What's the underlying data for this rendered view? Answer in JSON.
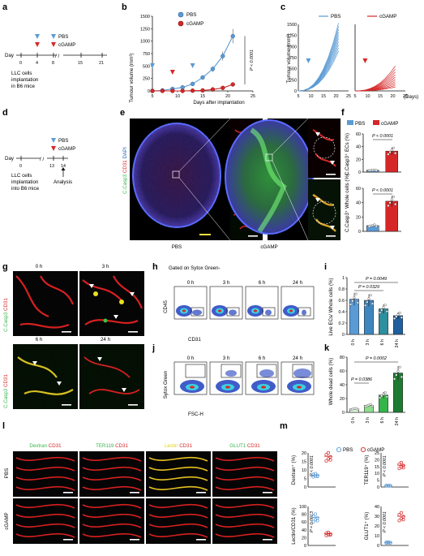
{
  "colors": {
    "pbs": "#5b9bd5",
    "cgamp": "#d62728",
    "green": "#35b44a",
    "dark_green": "#1e7a32",
    "teal": "#2e8f9e",
    "blue_flow": "#1f3fbf"
  },
  "panel_letters": [
    "a",
    "b",
    "c",
    "d",
    "e",
    "f",
    "g",
    "h",
    "i",
    "j",
    "k",
    "l",
    "m"
  ],
  "panel_a": {
    "day_label": "Day",
    "ticks": [
      "0",
      "4",
      "8",
      "15",
      "21"
    ],
    "legend": [
      "PBS",
      "cGAMP"
    ],
    "note": [
      "LLC cells",
      "implantation",
      "in B6 mice"
    ]
  },
  "panel_b": {
    "ylabel": "Tumour volume (mm³)",
    "xlabel": "Days after implantation",
    "pval": "P < 0.0001",
    "legend": [
      "PBS",
      "cGAMP"
    ]
  },
  "panel_c": {
    "ylabel": "Tumour volume (mm³)",
    "xlabel": "(Days)",
    "legend": [
      "PBS",
      "cGAMP"
    ]
  },
  "panel_d": {
    "day_label": "Day",
    "ticks": [
      "0",
      "13",
      "14"
    ],
    "legend": [
      "PBS",
      "cGAMP"
    ],
    "note": [
      "LLC cells",
      "implantation",
      "into B6 mice"
    ],
    "analysis": "Analysis"
  },
  "panel_e": {
    "stain": [
      "C.Casp3",
      "CD31",
      "DAPI"
    ],
    "groups": [
      "PBS",
      "cGAMP"
    ]
  },
  "panel_f": {
    "legend": [
      "PBS",
      "cGAMP"
    ],
    "ylabel_top": "C.Casp3⁺ ECs (%)",
    "ylabel_bottom": "C.Casp3⁺ Whole cells (%)",
    "pval_top": "P < 0.0001",
    "pval_bottom": "P < 0.0001"
  },
  "panel_g": {
    "stain": [
      "C.Casp3",
      "CD31"
    ],
    "times": [
      "0 h",
      "3 h",
      "6 h",
      "24 h"
    ]
  },
  "panel_h": {
    "title": "Gated on Sytox Green-",
    "times": [
      "0 h",
      "3 h",
      "6 h",
      "24 h"
    ],
    "ylabel": "CD45",
    "xlabel": "CD31"
  },
  "panel_i": {
    "ylabel": "Live ECs/ Whole cells (%)",
    "pvals": [
      "P = 0.0049",
      "P = 0.0329"
    ],
    "times": [
      "0 h",
      "3 h",
      "6 h",
      "24 h"
    ]
  },
  "panel_j": {
    "times": [
      "0 h",
      "3 h",
      "6 h",
      "24 h"
    ],
    "ylabel": "Sytox Green",
    "xlabel": "FSC-H"
  },
  "panel_k": {
    "ylabel": "Whole dead cells (%)",
    "pvals": [
      "P = 0.0002",
      "P = 0.0386"
    ],
    "times": [
      "0 h",
      "3 h",
      "6 h",
      "24 h"
    ]
  },
  "panel_l": {
    "cols": [
      [
        "Dextran",
        "CD31"
      ],
      [
        "TER119",
        "CD31"
      ],
      [
        "Lectin",
        "CD31"
      ],
      [
        "GLUT1",
        "CD31"
      ]
    ],
    "rows": [
      "PBS",
      "cGAMP"
    ]
  },
  "panel_m": {
    "legend": [
      "PBS",
      "cGAMP"
    ],
    "ylabels": [
      "Dextran⁺ (%)",
      "TER119⁺ (%)",
      "Lectin/CD31 (%)",
      "GLUT1⁺ (%)"
    ],
    "pvals": [
      "P < 0.0001",
      "P < 0.0001",
      "P = 0.0013",
      "P < 0.0001"
    ]
  },
  "chart_data": [
    {
      "type": "line",
      "title": "",
      "xlabel": "Days after implantation",
      "ylabel": "Tumour volume (mm³)",
      "x": [
        5,
        7,
        9,
        11,
        13,
        15,
        17,
        19,
        21
      ],
      "xlim": [
        5,
        25
      ],
      "ylim": [
        0,
        1500
      ],
      "yticks": [
        0,
        250,
        500,
        750,
        1000,
        1250,
        1500
      ],
      "xticks": [
        5,
        10,
        15,
        20,
        25
      ],
      "series": [
        {
          "name": "PBS",
          "values": [
            0,
            10,
            40,
            70,
            140,
            270,
            440,
            700,
            1100
          ]
        },
        {
          "name": "cGAMP",
          "values": [
            0,
            0,
            0,
            0,
            5,
            10,
            30,
            60,
            130
          ]
        }
      ]
    },
    {
      "type": "bar",
      "xlabel": "",
      "ylabel": "C.Casp3⁺ ECs (%)",
      "categories": [
        "PBS",
        "cGAMP"
      ],
      "values": [
        3,
        33
      ],
      "ylim": [
        0,
        60
      ],
      "yticks": [
        0,
        20,
        40,
        60
      ]
    },
    {
      "type": "bar",
      "xlabel": "",
      "ylabel": "C.Casp3⁺ Whole cells (%)",
      "categories": [
        "PBS",
        "cGAMP"
      ],
      "values": [
        8,
        42
      ],
      "ylim": [
        0,
        60
      ],
      "yticks": [
        0,
        20,
        40,
        60
      ]
    },
    {
      "type": "bar",
      "xlabel": "",
      "ylabel": "Live ECs/ Whole cells (%)",
      "categories": [
        "0 h",
        "3 h",
        "6 h",
        "24 h"
      ],
      "values": [
        0.62,
        0.6,
        0.45,
        0.33
      ],
      "ylim": [
        0,
        1.0
      ],
      "yticks": [
        0,
        0.2,
        0.4,
        0.6,
        0.8,
        1.0
      ]
    },
    {
      "type": "bar",
      "xlabel": "",
      "ylabel": "Whole dead cells (%)",
      "categories": [
        "0 h",
        "3 h",
        "6 h",
        "24 h"
      ],
      "values": [
        5,
        10,
        25,
        57
      ],
      "ylim": [
        0,
        80
      ],
      "yticks": [
        0,
        20,
        40,
        60,
        80
      ]
    },
    {
      "type": "scatter",
      "ylabel": "Dextran⁺ (%)",
      "categories": [
        "PBS",
        "cGAMP"
      ],
      "values": [
        7,
        18
      ],
      "ylim": [
        0,
        20
      ],
      "yticks": [
        0,
        5,
        10,
        15,
        20
      ]
    },
    {
      "type": "scatter",
      "ylabel": "TER119⁺ (%)",
      "categories": [
        "PBS",
        "cGAMP"
      ],
      "values": [
        1,
        16
      ],
      "ylim": [
        0,
        25
      ],
      "yticks": [
        0,
        5,
        10,
        15,
        20,
        25
      ]
    },
    {
      "type": "scatter",
      "ylabel": "Lectin/CD31 (%)",
      "categories": [
        "PBS",
        "cGAMP"
      ],
      "values": [
        72,
        30
      ],
      "ylim": [
        0,
        100
      ],
      "yticks": [
        0,
        20,
        40,
        60,
        80,
        100
      ]
    },
    {
      "type": "scatter",
      "ylabel": "GLUT1⁺ (%)",
      "categories": [
        "PBS",
        "cGAMP"
      ],
      "values": [
        3,
        30
      ],
      "ylim": [
        0,
        40
      ],
      "yticks": [
        0,
        10,
        20,
        30,
        40
      ]
    }
  ]
}
